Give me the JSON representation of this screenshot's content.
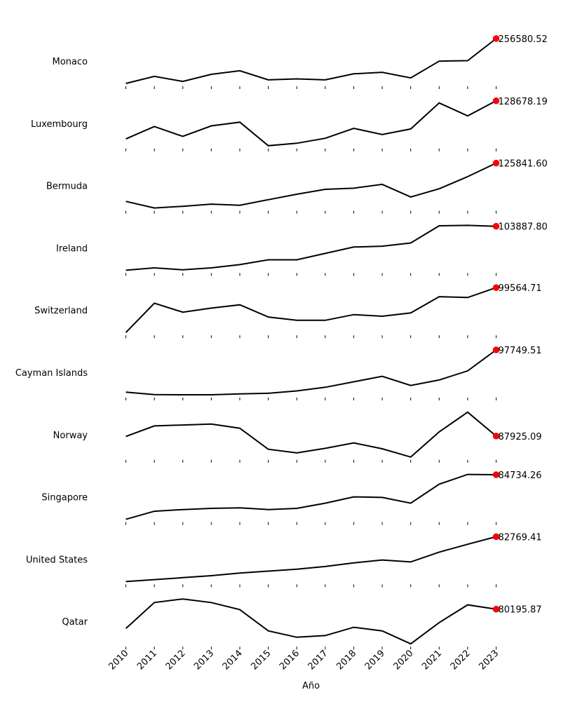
{
  "chart_data": {
    "type": "line",
    "xlabel": "Año",
    "x": [
      "2010",
      "2011",
      "2012",
      "2013",
      "2014",
      "2015",
      "2016",
      "2017",
      "2018",
      "2019",
      "2020",
      "2021",
      "2022",
      "2023"
    ],
    "series": [
      {
        "name": "Monaco",
        "values": [
          168000,
          182000,
          172000,
          186000,
          193000,
          175000,
          177000,
          175000,
          187000,
          190000,
          179000,
          212000,
          213000,
          256580.52
        ],
        "last_label": "256580.52"
      },
      {
        "name": "Luxembourg",
        "values": [
          98000,
          108000,
          100000,
          108500,
          111500,
          92500,
          94500,
          98500,
          106500,
          101500,
          106000,
          127000,
          116500,
          128678.19
        ],
        "last_label": "128678.19"
      },
      {
        "name": "Bermuda",
        "values": [
          91000,
          85000,
          86500,
          88500,
          87500,
          92500,
          97500,
          102000,
          103000,
          106500,
          95000,
          102500,
          113500,
          125841.6
        ],
        "last_label": "125841.60"
      },
      {
        "name": "Ireland",
        "values": [
          49000,
          52000,
          49500,
          52000,
          56000,
          62000,
          62000,
          70000,
          78000,
          79000,
          83000,
          104500,
          105000,
          103887.8
        ],
        "last_label": "103887.80"
      },
      {
        "name": "Switzerland",
        "values": [
          72000,
          90000,
          84500,
          87000,
          89000,
          81500,
          79500,
          79500,
          83000,
          82000,
          84000,
          94000,
          93500,
          99564.71
        ],
        "last_label": "99564.71"
      },
      {
        "name": "Cayman Islands",
        "values": [
          63000,
          61000,
          60800,
          60800,
          61500,
          62000,
          64000,
          67000,
          71500,
          76000,
          68500,
          73000,
          80500,
          97749.51
        ],
        "last_label": "97749.51"
      },
      {
        "name": "Norway",
        "values": [
          87500,
          99000,
          100000,
          101000,
          96500,
          73500,
          69500,
          74500,
          80500,
          74000,
          65000,
          92500,
          114000,
          87925.09
        ],
        "last_label": "87925.09"
      },
      {
        "name": "Singapore",
        "values": [
          46000,
          53000,
          54500,
          55500,
          56000,
          54500,
          55500,
          60000,
          65500,
          65000,
          60000,
          76500,
          85000,
          84734.26
        ],
        "last_label": "84734.26"
      },
      {
        "name": "United States",
        "values": [
          48500,
          50000,
          51500,
          53000,
          55000,
          56500,
          58000,
          60000,
          62800,
          65000,
          63500,
          71000,
          77000,
          82769.41
        ],
        "last_label": "82769.41"
      },
      {
        "name": "Qatar",
        "values": [
          72000,
          83000,
          84500,
          83000,
          80000,
          71000,
          68300,
          69000,
          72500,
          71000,
          65500,
          74500,
          82000,
          80195.87
        ],
        "last_label": "80195.87"
      }
    ]
  }
}
